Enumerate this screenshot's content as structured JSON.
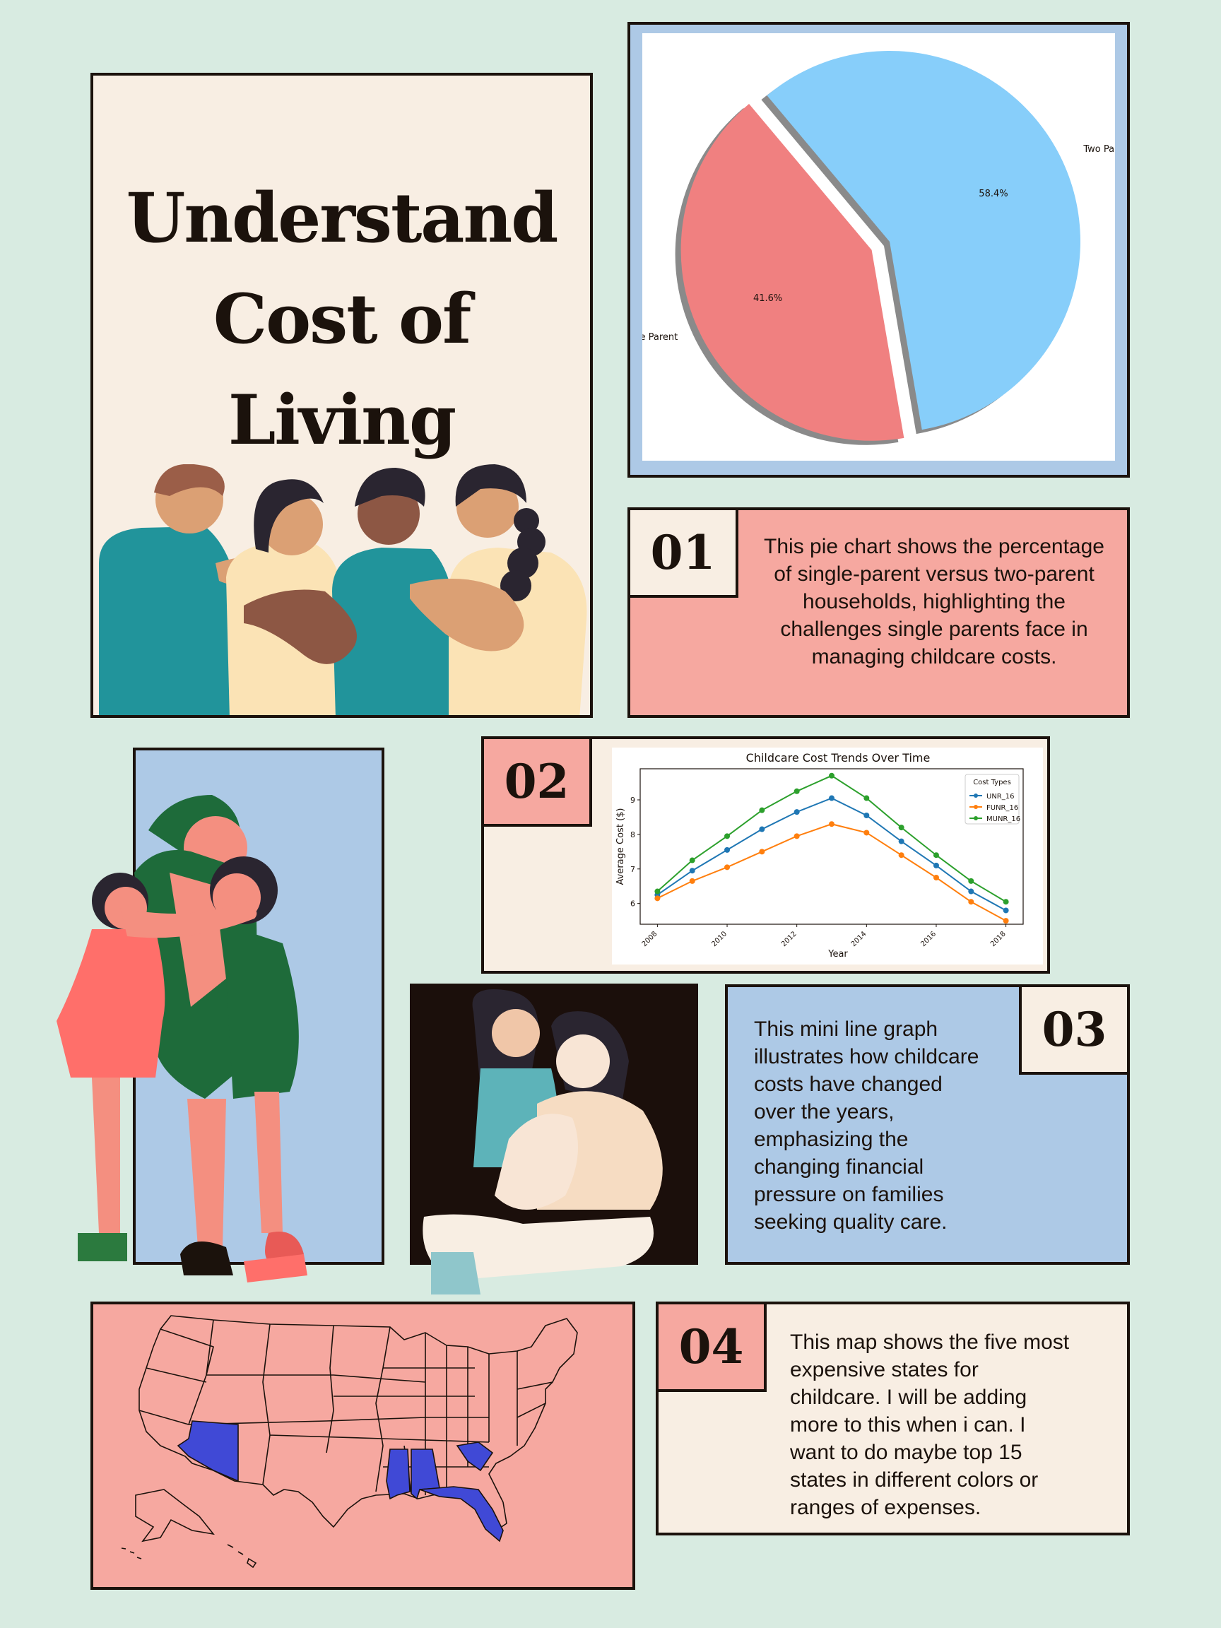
{
  "title": [
    "Understand",
    "Cost of",
    "Living"
  ],
  "palette": {
    "background": "#d8ebe1",
    "cream": "#f8eee3",
    "pink": "#f6a8a0",
    "blue": "#adc9e6",
    "ink": "#1b120c",
    "map_highlight": "#4049d6"
  },
  "pie_section": {
    "chart_data": {
      "type": "pie",
      "labels": [
        "Two Parent",
        "Single Parent"
      ],
      "values": [
        58.4,
        41.6
      ],
      "value_labels": [
        "58.4%",
        "41.6%"
      ],
      "colors": [
        "#87cefa",
        "#f08080"
      ],
      "explode": "Single Parent",
      "shadow": true
    }
  },
  "card_01": {
    "number": "01",
    "text": "This pie chart shows the percentage of single-parent versus two-parent households, highlighting the challenges single parents face in managing childcare costs."
  },
  "card_02": {
    "number": "02",
    "chart_data": {
      "type": "line",
      "title": "Childcare Cost Trends Over Time",
      "xlabel": "Year",
      "ylabel": "Average Cost ($)",
      "x": [
        2008,
        2009,
        2010,
        2011,
        2012,
        2013,
        2014,
        2015,
        2016,
        2017,
        2018
      ],
      "xticks": [
        "2008",
        "2010",
        "2012",
        "2014",
        "2016",
        "2018"
      ],
      "yticks": [
        "6",
        "7",
        "8",
        "9"
      ],
      "ylim": [
        5.4,
        9.9
      ],
      "legend_title": "Cost Types",
      "legend_position": "top-right",
      "series": [
        {
          "name": "UNR_16",
          "color": "#1f77b4",
          "values": [
            6.25,
            6.95,
            7.55,
            8.15,
            8.65,
            9.05,
            8.55,
            7.8,
            7.1,
            6.35,
            5.8
          ]
        },
        {
          "name": "FUNR_16",
          "color": "#ff7f0e",
          "values": [
            6.15,
            6.65,
            7.05,
            7.5,
            7.95,
            8.3,
            8.05,
            7.4,
            6.75,
            6.05,
            5.5
          ]
        },
        {
          "name": "MUNR_16",
          "color": "#2ca02c",
          "values": [
            6.35,
            7.25,
            7.95,
            8.7,
            9.25,
            9.7,
            9.05,
            8.2,
            7.4,
            6.65,
            6.05
          ]
        }
      ]
    }
  },
  "card_03": {
    "number": "03",
    "text": "This mini line graph illustrates how childcare costs have changed over the years, emphasizing the changing financial pressure on families seeking quality care."
  },
  "card_04": {
    "number": "04",
    "text": "This map shows the five most expensive states for childcare. I will be adding more to this when i can. I want to do maybe top 15 states in different colors or ranges of expenses."
  },
  "map": {
    "highlighted_states": [
      "Arizona",
      "Mississippi",
      "Alabama",
      "South Carolina",
      "Florida"
    ]
  }
}
